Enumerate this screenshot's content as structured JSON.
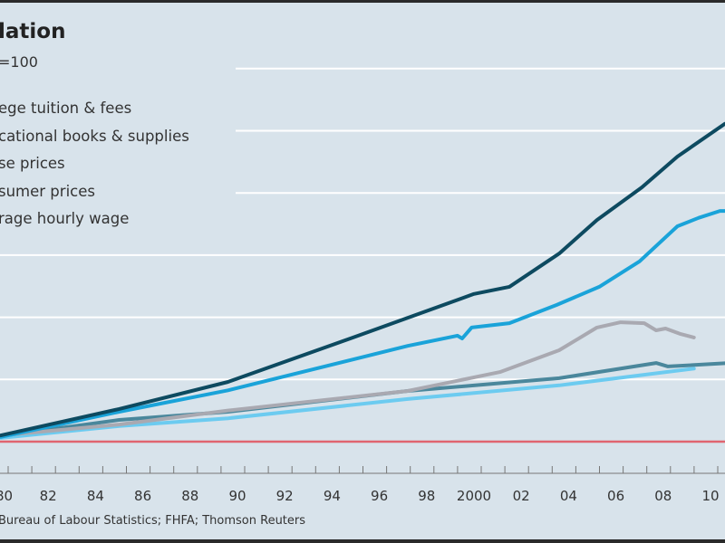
{
  "chart_data": {
    "type": "line",
    "title": "lation",
    "subtitle": "=100",
    "source": "Bureau of Labour Statistics; FHFA; Thomson Reuters",
    "xlim": [
      1980,
      2010.6
    ],
    "ylim": [
      100,
      1400
    ],
    "baseline": 100,
    "y_gridlines": [
      300,
      500,
      700,
      900,
      1100,
      1300
    ],
    "x_tick_labels": [
      {
        "year": 1980,
        "label": "80"
      },
      {
        "year": 1982,
        "label": "82"
      },
      {
        "year": 1984,
        "label": "84"
      },
      {
        "year": 1986,
        "label": "86"
      },
      {
        "year": 1988,
        "label": "88"
      },
      {
        "year": 1990,
        "label": "90"
      },
      {
        "year": 1992,
        "label": "92"
      },
      {
        "year": 1994,
        "label": "94"
      },
      {
        "year": 1996,
        "label": "96"
      },
      {
        "year": 1998,
        "label": "98"
      },
      {
        "year": 2000,
        "label": "2000"
      },
      {
        "year": 2002,
        "label": "02"
      },
      {
        "year": 2004,
        "label": "04"
      },
      {
        "year": 2006,
        "label": "06"
      },
      {
        "year": 2008,
        "label": "08"
      },
      {
        "year": 2010,
        "label": "10"
      }
    ],
    "series": [
      {
        "name": "ege tuition & fees",
        "color": "#0d4a60",
        "points": [
          [
            1980,
            120
          ],
          [
            1985,
            205
          ],
          [
            1989.6,
            292
          ],
          [
            1995,
            438
          ],
          [
            2000,
            575
          ],
          [
            2001.5,
            598
          ],
          [
            2003.6,
            705
          ],
          [
            2005.2,
            813
          ],
          [
            2007.1,
            918
          ],
          [
            2008.6,
            1017
          ],
          [
            2010.6,
            1122
          ]
        ]
      },
      {
        "name": "cational books & supplies",
        "color": "#1aa3d9",
        "points": [
          [
            1980,
            115
          ],
          [
            1985,
            196
          ],
          [
            1989.6,
            265
          ],
          [
            1997.2,
            408
          ],
          [
            1999.3,
            441
          ],
          [
            1999.5,
            432
          ],
          [
            1999.9,
            467
          ],
          [
            2001.5,
            481
          ],
          [
            2003.5,
            540
          ],
          [
            2005.3,
            598
          ],
          [
            2007,
            680
          ],
          [
            2008.6,
            793
          ],
          [
            2009.5,
            820
          ],
          [
            2010.4,
            842
          ],
          [
            2010.6,
            842
          ]
        ]
      },
      {
        "name": "se prices",
        "color": "#a9a9b1",
        "points": [
          [
            1980,
            120
          ],
          [
            1985,
            155
          ],
          [
            1989.6,
            200
          ],
          [
            1997.2,
            263
          ],
          [
            2001.1,
            324
          ],
          [
            2003.6,
            394
          ],
          [
            2005.2,
            467
          ],
          [
            2006.2,
            484
          ],
          [
            2007.2,
            481
          ],
          [
            2007.7,
            458
          ],
          [
            2008.1,
            464
          ],
          [
            2008.7,
            447
          ],
          [
            2009.3,
            435
          ]
        ]
      },
      {
        "name": "sumer prices",
        "color": "#4a879c",
        "points": [
          [
            1980,
            118
          ],
          [
            1985,
            170
          ],
          [
            1989.6,
            196
          ],
          [
            1997.2,
            263
          ],
          [
            2003.6,
            304
          ],
          [
            2007.7,
            353
          ],
          [
            2008.2,
            342
          ],
          [
            2010.6,
            352
          ]
        ]
      },
      {
        "name": "rage hourly wage",
        "color": "#6ccbf0",
        "points": [
          [
            1980,
            112
          ],
          [
            1985,
            150
          ],
          [
            1989.6,
            175
          ],
          [
            1997.2,
            237
          ],
          [
            2003.6,
            281
          ],
          [
            2009.3,
            335
          ]
        ]
      }
    ]
  }
}
